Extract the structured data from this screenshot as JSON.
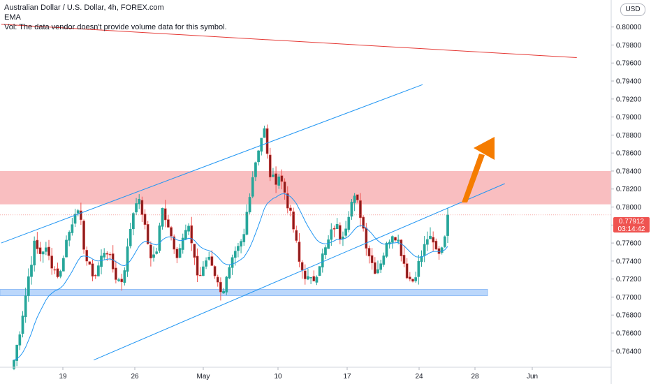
{
  "legend": {
    "title": "Australian Dollar / U.S. Dollar, 4h, FOREX.com",
    "indicator": "EMA",
    "volume_note": "Vol: The data vendor doesn't provide volume data for this symbol."
  },
  "currency_button": "USD",
  "price_badge": {
    "price": "0.77912",
    "countdown": "03:14:42"
  },
  "colors": {
    "up": "#26a69a",
    "down": "#ef5350",
    "down_candle_body": "#8b1c1c",
    "ema": "#2196f3",
    "trendline": "#2196f3",
    "resistance_line": "#e53935",
    "resistance_zone": "#f8b3b5",
    "support_zone": "#bbd7fb",
    "arrow": "#f57c00",
    "badge": "#ef5350"
  },
  "chart_data": {
    "type": "candlestick",
    "symbol": "AUDUSD",
    "interval": "4h",
    "source": "FOREX.com",
    "ylim": [
      0.7625,
      0.8025
    ],
    "y_ticks": [
      "0.80000",
      "0.79800",
      "0.79600",
      "0.79400",
      "0.79200",
      "0.79000",
      "0.78800",
      "0.78600",
      "0.78400",
      "0.78200",
      "0.78000",
      "0.77800",
      "0.77600",
      "0.77400",
      "0.77200",
      "0.77000",
      "0.76800",
      "0.76600",
      "0.76400"
    ],
    "x_ticks": [
      "19",
      "26",
      "May",
      "10",
      "17",
      "24",
      "28",
      "Jun"
    ],
    "close_path": [
      0.763,
      0.7658,
      0.7692,
      0.7728,
      0.7758,
      0.7748,
      0.7755,
      0.7742,
      0.773,
      0.7722,
      0.7758,
      0.7775,
      0.7798,
      0.7785,
      0.7745,
      0.7728,
      0.7725,
      0.7742,
      0.7756,
      0.7738,
      0.7722,
      0.7716,
      0.7742,
      0.7785,
      0.781,
      0.7798,
      0.7765,
      0.7742,
      0.7752,
      0.7798,
      0.7786,
      0.7764,
      0.7748,
      0.7762,
      0.7778,
      0.7758,
      0.7722,
      0.7728,
      0.7748,
      0.7735,
      0.7712,
      0.7708,
      0.7725,
      0.7742,
      0.7753,
      0.7765,
      0.781,
      0.7842,
      0.7868,
      0.7888,
      0.7838,
      0.7828,
      0.7836,
      0.7818,
      0.7795,
      0.777,
      0.7735,
      0.7725,
      0.7716,
      0.7722,
      0.774,
      0.7752,
      0.7768,
      0.7782,
      0.7766,
      0.778,
      0.7804,
      0.781,
      0.779,
      0.776,
      0.774,
      0.7728,
      0.7742,
      0.7756,
      0.7772,
      0.7768,
      0.7748,
      0.7726,
      0.7716,
      0.7732,
      0.7748,
      0.7766,
      0.776,
      0.7748,
      0.7758,
      0.7791
    ],
    "ema_description": "short EMA following price",
    "drawings": {
      "ascending_channel_upper": {
        "from": [
          "2021-04-13",
          0.776
        ],
        "to": [
          "2021-05-24",
          0.7936
        ]
      },
      "ascending_channel_lower": {
        "from": [
          "2021-04-22",
          0.763
        ],
        "to": [
          "2021-06-01",
          0.7826
        ]
      },
      "long_term_resistance": {
        "from": [
          "2021-04-13",
          0.8003
        ],
        "to": [
          "2021-06-08",
          0.7966
        ]
      },
      "resistance_zone": [
        0.7803,
        0.784
      ],
      "support_zone": [
        0.7703,
        0.7707
      ],
      "projection_arrow": "upward"
    },
    "last_price": 0.77912
  }
}
